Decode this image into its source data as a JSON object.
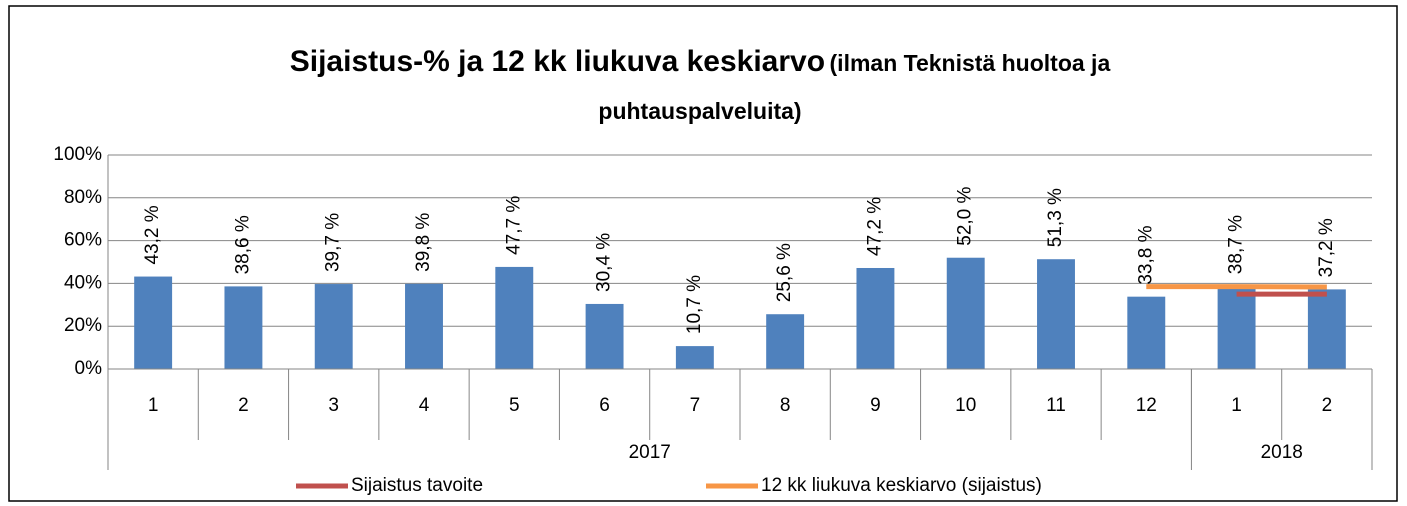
{
  "chart_data": {
    "type": "bar",
    "title": "Sijaistus-% ja 12 kk liukuva keskiarvo",
    "subtitle": "(ilman Teknistä huoltoa ja puhtauspalveluita)",
    "categories": [
      "1",
      "2",
      "3",
      "4",
      "5",
      "6",
      "7",
      "8",
      "9",
      "10",
      "11",
      "12",
      "1",
      "2"
    ],
    "category_years": [
      "2017",
      "2017",
      "2017",
      "2017",
      "2017",
      "2017",
      "2017",
      "2017",
      "2017",
      "2017",
      "2017",
      "2017",
      "2018",
      "2018"
    ],
    "ylim": [
      0,
      100
    ],
    "yticks": [
      {
        "value": 0,
        "label": "0%"
      },
      {
        "value": 20,
        "label": "20%"
      },
      {
        "value": 40,
        "label": "40%"
      },
      {
        "value": 60,
        "label": "60%"
      },
      {
        "value": 80,
        "label": "80%"
      },
      {
        "value": 100,
        "label": "100%"
      }
    ],
    "grid": true,
    "series": [
      {
        "type": "bar",
        "color": "#4f81bd",
        "values": [
          43.2,
          38.6,
          39.7,
          39.8,
          47.7,
          30.4,
          10.7,
          25.6,
          47.2,
          52.0,
          51.3,
          33.8,
          38.7,
          37.2
        ],
        "value_labels": [
          "43,2 %",
          "38,6 %",
          "39,7 %",
          "39,8 %",
          "47,7 %",
          "30,4 %",
          "10,7 %",
          "25,6 %",
          "47,2 %",
          "52,0 %",
          "51,3 %",
          "33,8 %",
          "38,7 %",
          "37,2 %"
        ]
      },
      {
        "type": "line",
        "name": "Sijaistus tavoite",
        "color": "#c0504d",
        "values": [
          null,
          null,
          null,
          null,
          null,
          null,
          null,
          null,
          null,
          null,
          null,
          null,
          35,
          35
        ]
      },
      {
        "type": "line",
        "name": "12 kk liukuva keskiarvo (sijaistus)",
        "color": "#f79646",
        "values": [
          null,
          null,
          null,
          null,
          null,
          null,
          null,
          null,
          null,
          null,
          null,
          38.5,
          38.5,
          38.3
        ]
      }
    ],
    "legend": "bottom"
  }
}
